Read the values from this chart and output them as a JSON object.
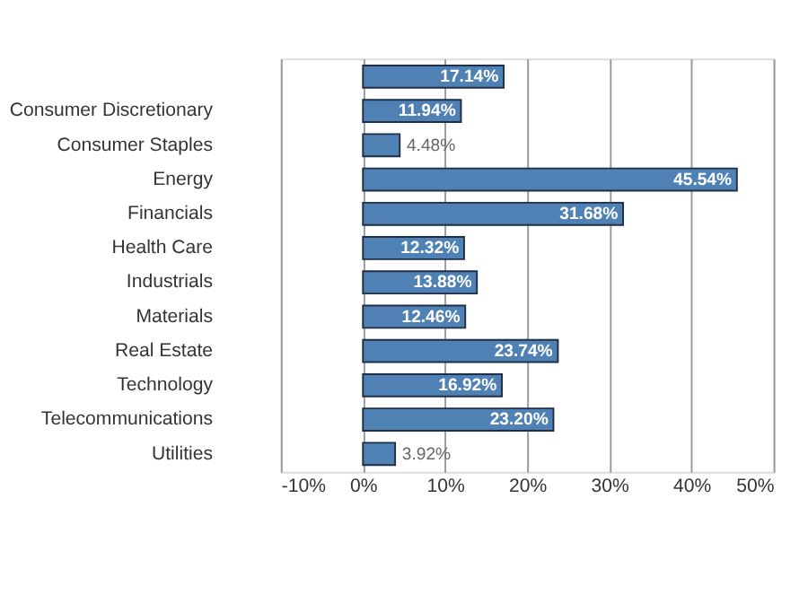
{
  "chart_data": {
    "type": "bar",
    "orientation": "horizontal",
    "categories": [
      null,
      "Consumer Discretionary",
      "Consumer Staples",
      "Energy",
      "Financials",
      "Health Care",
      "Industrials",
      "Materials",
      "Real Estate",
      "Technology",
      "Telecommunications",
      "Utilities"
    ],
    "values": [
      17.14,
      11.94,
      4.48,
      45.54,
      31.68,
      12.32,
      13.88,
      12.46,
      23.74,
      16.92,
      23.2,
      3.92
    ],
    "value_labels": [
      "17.14%",
      "11.94%",
      "4.48%",
      "45.54%",
      "31.68%",
      "12.32%",
      "13.88%",
      "12.46%",
      "23.74%",
      "16.92%",
      "23.20%",
      "3.92%"
    ],
    "color": "#4f81b4",
    "xlim": [
      -10,
      50
    ],
    "xticks": [
      {
        "value": -10,
        "label": "-10%"
      },
      {
        "value": 0,
        "label": "0%"
      },
      {
        "value": 10,
        "label": "10%"
      },
      {
        "value": 20,
        "label": "20%"
      },
      {
        "value": 30,
        "label": "30%"
      },
      {
        "value": 40,
        "label": "40%"
      },
      {
        "value": 50,
        "label": "50%"
      }
    ],
    "grid": "x"
  }
}
